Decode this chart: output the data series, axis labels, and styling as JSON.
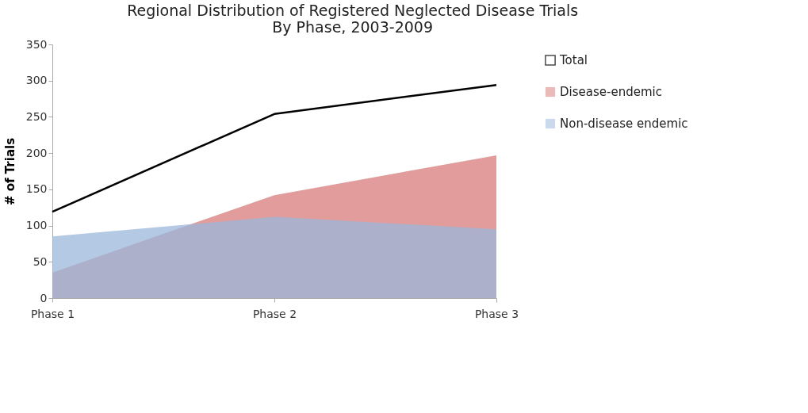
{
  "chart_data": {
    "type": "area",
    "title": "Regional Distribution of Registered Neglected Disease Trials\nBy Phase, 2003-2009",
    "ylabel": "# of Trials",
    "categories": [
      "Phase 1",
      "Phase 2",
      "Phase 3"
    ],
    "series": [
      {
        "name": "Total",
        "type": "line",
        "color": "#000000",
        "values": [
          119,
          254,
          294
        ]
      },
      {
        "name": "Disease-endemic",
        "type": "area",
        "color": "#d77b79",
        "values": [
          35,
          142,
          197
        ]
      },
      {
        "name": "Non-disease endemic",
        "type": "area",
        "color": "#9bb7d9",
        "values": [
          85,
          112,
          95
        ]
      }
    ],
    "ylim": [
      0,
      350
    ],
    "yticks": [
      0,
      50,
      100,
      150,
      200,
      250,
      300,
      350
    ],
    "grid": false,
    "legend": "right"
  }
}
